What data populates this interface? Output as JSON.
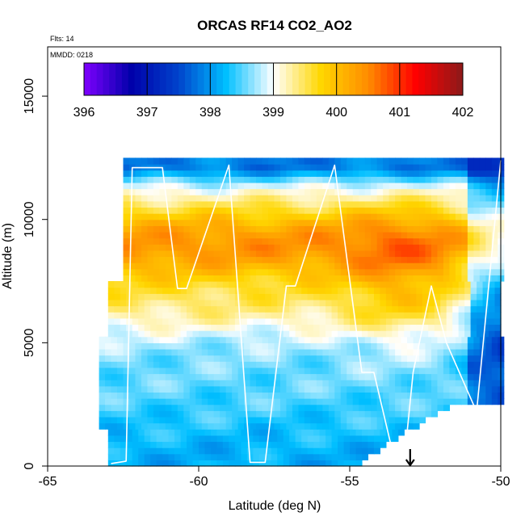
{
  "chart_data": {
    "type": "heatmap",
    "title": "ORCAS RF14 CO2_AO2",
    "annotations": {
      "flights": "Flts: 14",
      "date": "MMDD: 0218"
    },
    "xlabel": "Latitude (deg N)",
    "ylabel": "Altitude (m)",
    "xlim": [
      -65,
      -50
    ],
    "ylim": [
      0,
      17000
    ],
    "x_ticks": [
      -65,
      -60,
      -55,
      -50
    ],
    "y_ticks": [
      0,
      5000,
      10000,
      15000
    ],
    "x_tick_labels": [
      "-65",
      "-60",
      "-55",
      "-50"
    ],
    "y_tick_labels": [
      "0",
      "5000",
      "10000",
      "15000"
    ],
    "grid": false,
    "colorbar": {
      "position": "top inside plot",
      "min": 396,
      "max": 402,
      "ticks": [
        396,
        397,
        398,
        399,
        400,
        401,
        402
      ],
      "tick_labels": [
        "396",
        "397",
        "398",
        "399",
        "400",
        "401",
        "402"
      ],
      "colors": [
        "#7F00FF",
        "#0000AA",
        "#0044CC",
        "#00BFFF",
        "#FFFFFF",
        "#FFD700",
        "#FF8C00",
        "#FF0000",
        "#8B1A1A"
      ]
    },
    "field_grid": {
      "lat_range": [
        -63.0,
        -50.0
      ],
      "alt_range": [
        0,
        12500
      ],
      "lat_step": 0.2,
      "alt_step": 250,
      "value_range": [
        397.2,
        400.9
      ]
    },
    "flight_track": {
      "color": "#FFFFFF",
      "lat": [
        -62.9,
        -62.4,
        -62.2,
        -61.2,
        -60.7,
        -60.4,
        -59.0,
        -58.3,
        -57.8,
        -57.1,
        -56.8,
        -55.5,
        -54.6,
        -54.2,
        -53.5,
        -53.2,
        -52.9,
        -52.3,
        -51.8,
        -50.8,
        -50.0
      ],
      "alt": [
        100,
        200,
        12100,
        12100,
        7200,
        7200,
        12200,
        150,
        150,
        7300,
        7300,
        12200,
        3800,
        3800,
        150,
        150,
        3800,
        7300,
        5000,
        2200,
        12400
      ]
    },
    "marker": {
      "type": "arrow-down",
      "lat": -53.0,
      "alt": 0
    }
  }
}
